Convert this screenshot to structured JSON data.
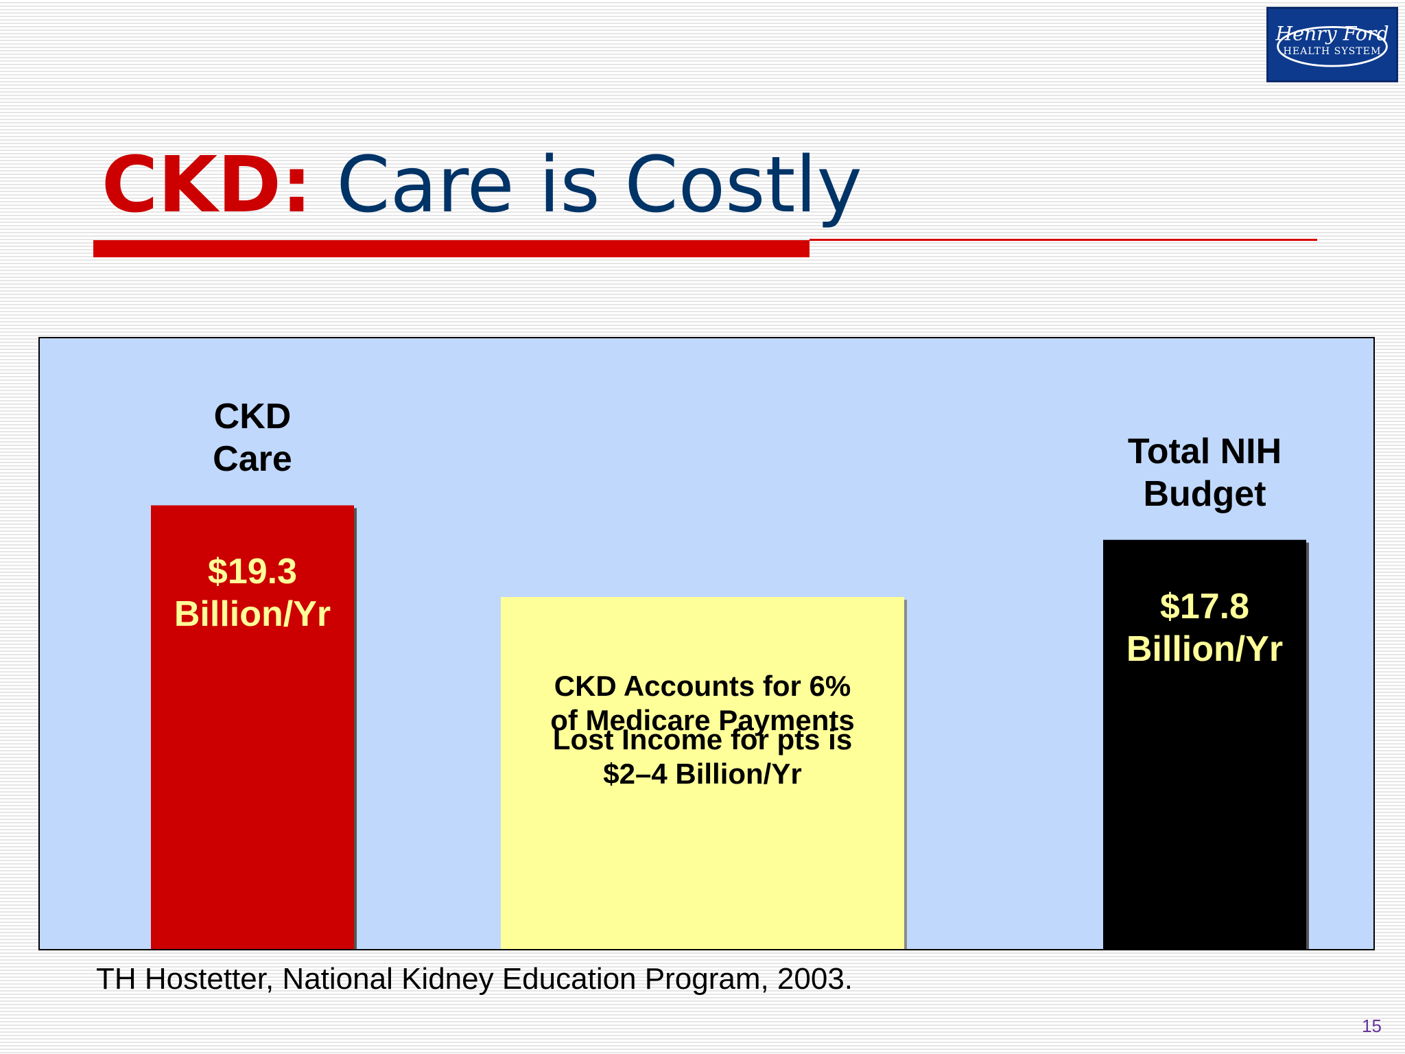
{
  "logo": {
    "line1": "Henry Ford",
    "line2": "HEALTH SYSTEM"
  },
  "title": {
    "accent": "CKD:",
    "rest": "Care is Costly"
  },
  "chart_data": {
    "type": "bar",
    "title": "CKD: Care is Costly",
    "xlabel": "",
    "ylabel": "",
    "ylim": [
      0,
      25
    ],
    "grid": false,
    "categories": [
      "CKD Care",
      "Total NIH Budget"
    ],
    "values": [
      19.3,
      17.8
    ],
    "unit": "Billion/Yr",
    "bar_colors": [
      "#cc0000",
      "#000000"
    ],
    "value_colors": [
      "#ffff99",
      "#ffff99"
    ],
    "labels": [
      "CKD\nCare",
      "Total NIH\nBudget"
    ],
    "value_labels": [
      "$19.3\nBillion/Yr",
      "$17.8\nBillion/Yr"
    ],
    "annotation": {
      "color": "#ffff99",
      "text1": "CKD Accounts for 6%\nof Medicare Payments",
      "text2": "Lost Income for pts is\n$2–4 Billion/Yr"
    }
  },
  "citation": "TH Hostetter, National Kidney Education Program, 2003.",
  "page_number": "15"
}
